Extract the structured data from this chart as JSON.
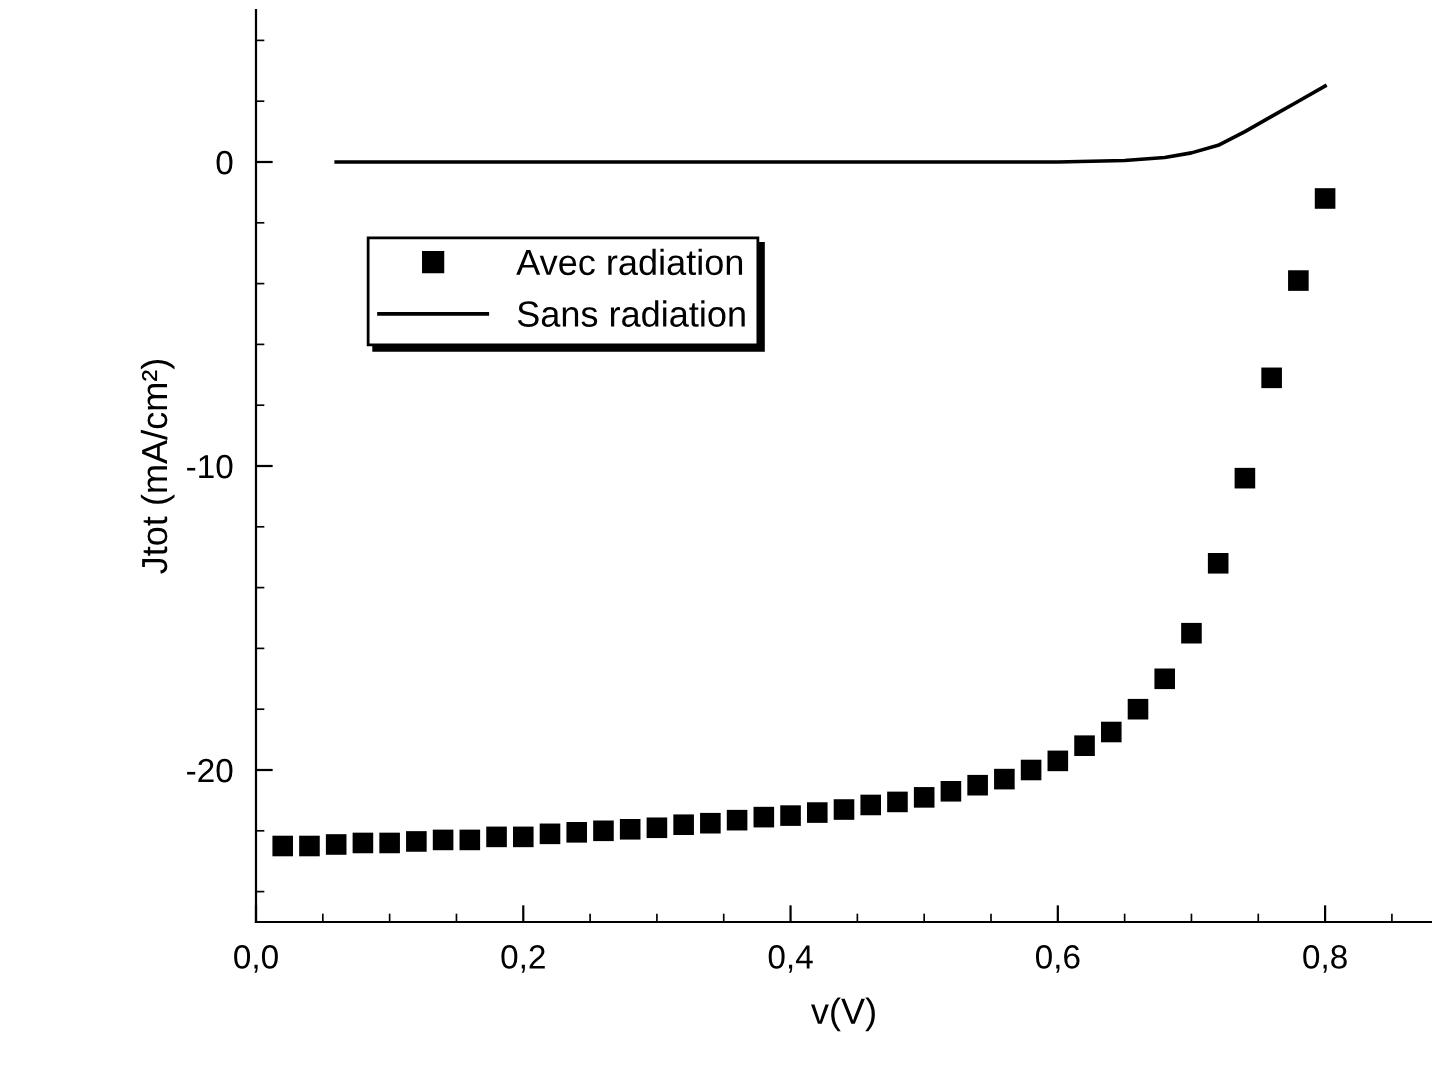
{
  "chart_data": {
    "type": "scatter",
    "xlabel": "v(V)",
    "ylabel": "Jtot (mA/cm²)",
    "xlim": [
      0,
      0.88
    ],
    "ylim": [
      -25,
      5
    ],
    "xticks": [
      {
        "value": 0,
        "label": "0,0"
      },
      {
        "value": 0.2,
        "label": "0,2"
      },
      {
        "value": 0.4,
        "label": "0,4"
      },
      {
        "value": 0.6,
        "label": "0,6"
      },
      {
        "value": 0.8,
        "label": "0,8"
      }
    ],
    "yticks": [
      0,
      -10,
      -20
    ],
    "grid": false,
    "legend": "top left",
    "marker": "square",
    "series": [
      {
        "name": "Avec radiation",
        "color": "#000000",
        "x": [
          0.02,
          0.04,
          0.06,
          0.08,
          0.1,
          0.12,
          0.14,
          0.16,
          0.18,
          0.2,
          0.22,
          0.24,
          0.26,
          0.28,
          0.3,
          0.32,
          0.34,
          0.36,
          0.38,
          0.4,
          0.42,
          0.44,
          0.46,
          0.48,
          0.5,
          0.52,
          0.54,
          0.56,
          0.58,
          0.6,
          0.62,
          0.64,
          0.66,
          0.68,
          0.7,
          0.72,
          0.74,
          0.76,
          0.78,
          0.8
        ],
        "values": [
          -22.5,
          -22.5,
          -22.45,
          -22.4,
          -22.4,
          -22.35,
          -22.3,
          -22.3,
          -22.2,
          -22.2,
          -22.1,
          -22.05,
          -22.0,
          -21.95,
          -21.9,
          -21.8,
          -21.75,
          -21.65,
          -21.55,
          -21.5,
          -21.4,
          -21.3,
          -21.15,
          -21.05,
          -20.9,
          -20.7,
          -20.5,
          -20.3,
          -20.0,
          -19.7,
          -19.2,
          -18.75,
          -18.0,
          -17.0,
          -15.5,
          -13.2,
          -10.4,
          -7.1,
          -3.9,
          -1.2
        ]
      },
      {
        "name": "Sans radiation",
        "type": "line",
        "color": "#000000",
        "marker": "none",
        "x": [
          0.06,
          0.3,
          0.6,
          0.65,
          0.68,
          0.7,
          0.72,
          0.74,
          0.76,
          0.78,
          0.8
        ],
        "values": [
          0,
          0,
          0,
          0.05,
          0.15,
          0.3,
          0.55,
          1.0,
          1.5,
          2.0,
          2.5
        ]
      }
    ]
  }
}
